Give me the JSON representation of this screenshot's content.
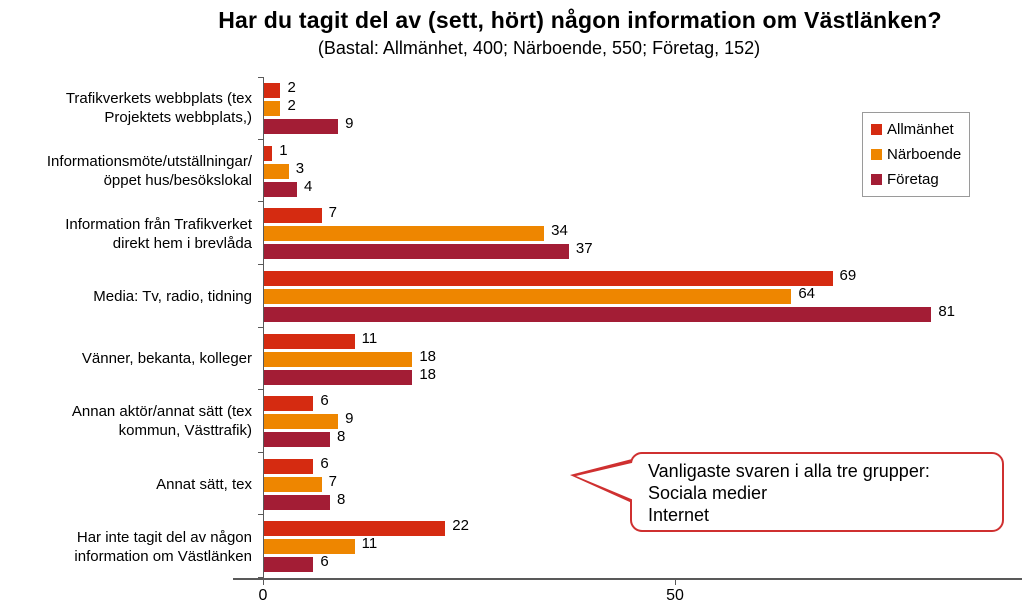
{
  "title": "Har du tagit del av (sett, hört) någon information om Västlänken?",
  "subtitle": "(Bastal: Allmänhet, 400; Närboende, 550; Företag, 152)",
  "chart_data": {
    "type": "bar",
    "orientation": "horizontal",
    "title": "Har du tagit del av (sett, hört) någon information om Västlänken?",
    "subtitle": "(Bastal: Allmänhet, 400; Närboende, 550; Företag, 152)",
    "categories": [
      "Trafikverkets webbplats (tex Projektets webbplats,)",
      "Informationsmöte/utställningar/ öppet hus/besökslokal",
      "Information från Trafikverket direkt hem i brevlåda",
      "Media: Tv, radio, tidning",
      "Vänner, bekanta, kolleger",
      "Annan aktör/annat sätt (tex kommun, Västtrafik)",
      "Annat sätt, tex",
      "Har inte tagit del av någon information om Västlänken"
    ],
    "series": [
      {
        "name": "Allmänhet",
        "key": "allmanhet",
        "color": "#d52b11",
        "values": [
          2,
          1,
          7,
          69,
          11,
          6,
          6,
          22
        ]
      },
      {
        "name": "Närboende",
        "key": "narboende",
        "color": "#ee8600",
        "values": [
          2,
          3,
          34,
          64,
          18,
          9,
          7,
          11
        ]
      },
      {
        "name": "Företag",
        "key": "foretag",
        "color": "#a31d35",
        "values": [
          9,
          4,
          37,
          81,
          18,
          8,
          8,
          6
        ]
      }
    ],
    "x_ticks": [
      0,
      50
    ],
    "xlim": [
      0,
      92
    ],
    "grid": false,
    "value_labels": true,
    "legend_position": "upper-right"
  },
  "callout": {
    "lines": [
      "Vanligaste svaren i alla tre grupper:",
      "Sociala medier",
      "Internet"
    ],
    "border_color": "#cf3030"
  },
  "colors": {
    "axis": "#595959",
    "background": "#ffffff",
    "text": "#000000"
  }
}
